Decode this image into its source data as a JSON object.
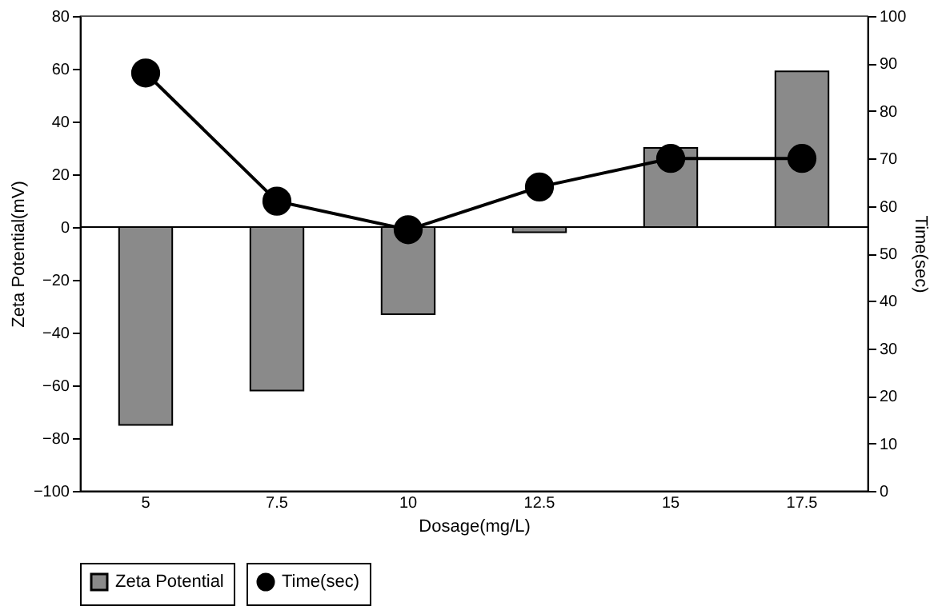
{
  "chart_data": {
    "type": "bar",
    "xlabel": "Dosage(mg/L)",
    "ylabel": "Zeta Potential(mV)",
    "y2label": "Time(sec)",
    "categories": [
      "5",
      "7.5",
      "10",
      "12.5",
      "15",
      "17.5"
    ],
    "series": [
      {
        "name": "Zeta Potential",
        "color": "#8a8a8a",
        "values": [
          -75,
          -62,
          -33,
          -2,
          30,
          59
        ]
      },
      {
        "name": "Time(sec)",
        "type": "line",
        "axis": "y2",
        "color": "#000000",
        "marker": "circle",
        "values": [
          88,
          61,
          55,
          64,
          70,
          70
        ]
      }
    ],
    "ylim": [
      -100,
      80
    ],
    "yticks": [
      -100,
      -80,
      -60,
      -40,
      -20,
      0,
      20,
      40,
      60,
      80
    ],
    "y2lim": [
      0,
      100
    ],
    "y2ticks": [
      0,
      10,
      20,
      30,
      40,
      50,
      60,
      70,
      80,
      90,
      100
    ],
    "ref_lines": [
      {
        "axis": "y",
        "value": 0,
        "color": "#000000"
      }
    ],
    "grid": false,
    "legend": "bottom"
  }
}
